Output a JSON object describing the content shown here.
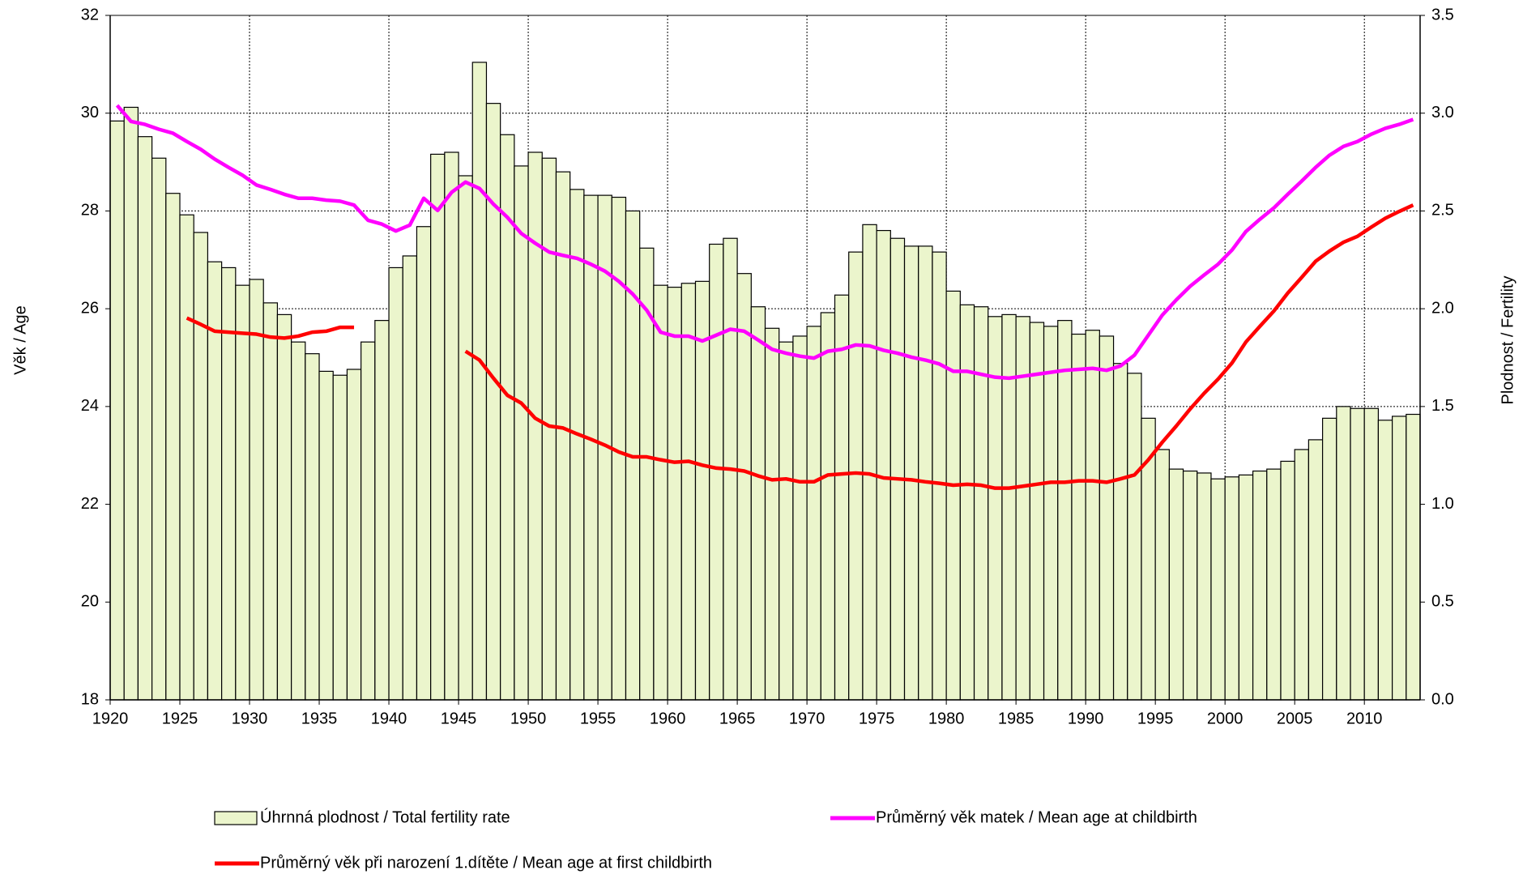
{
  "chart_data": {
    "type": "combo",
    "y_label": "Věk / Age",
    "y2_label": "Plodnost / Fertility",
    "x": [
      1920,
      1921,
      1922,
      1923,
      1924,
      1925,
      1926,
      1927,
      1928,
      1929,
      1930,
      1931,
      1932,
      1933,
      1934,
      1935,
      1936,
      1937,
      1938,
      1939,
      1940,
      1941,
      1942,
      1943,
      1944,
      1945,
      1946,
      1947,
      1948,
      1949,
      1950,
      1951,
      1952,
      1953,
      1954,
      1955,
      1956,
      1957,
      1958,
      1959,
      1960,
      1961,
      1962,
      1963,
      1964,
      1965,
      1966,
      1967,
      1968,
      1969,
      1970,
      1971,
      1972,
      1973,
      1974,
      1975,
      1976,
      1977,
      1978,
      1979,
      1980,
      1981,
      1982,
      1983,
      1984,
      1985,
      1986,
      1987,
      1988,
      1989,
      1990,
      1991,
      1992,
      1993,
      1994,
      1995,
      1996,
      1997,
      1998,
      1999,
      2000,
      2001,
      2002,
      2003,
      2004,
      2005,
      2006,
      2007,
      2008,
      2009,
      2010,
      2011,
      2012,
      2013
    ],
    "xlim": [
      1920,
      2014
    ],
    "xticks": [
      1920,
      1925,
      1930,
      1935,
      1940,
      1945,
      1950,
      1955,
      1960,
      1965,
      1970,
      1975,
      1980,
      1985,
      1990,
      1995,
      2000,
      2005,
      2010
    ],
    "ylim": [
      18,
      32
    ],
    "yticks": [
      18,
      20,
      22,
      24,
      26,
      28,
      30,
      32
    ],
    "y2lim": [
      0,
      3.5
    ],
    "y2ticks": [
      {
        "value": 0,
        "label": "0.0"
      },
      0.5,
      {
        "value": 1,
        "label": "1.0"
      },
      1.5,
      {
        "value": 2,
        "label": "2.0"
      },
      2.5,
      {
        "value": 3,
        "label": "3.0"
      },
      3.5
    ],
    "grid": true,
    "series": [
      {
        "name": "Úhrnná plodnost / Total fertility rate",
        "type": "bar",
        "axis": "y2",
        "color": "#ebf5cc",
        "values": [
          2.96,
          3.03,
          2.88,
          2.77,
          2.59,
          2.48,
          2.39,
          2.24,
          2.21,
          2.12,
          2.15,
          2.03,
          1.97,
          1.83,
          1.77,
          1.68,
          1.66,
          1.69,
          1.83,
          1.94,
          2.21,
          2.27,
          2.42,
          2.79,
          2.8,
          2.68,
          3.26,
          3.05,
          2.89,
          2.73,
          2.8,
          2.77,
          2.7,
          2.61,
          2.58,
          2.58,
          2.57,
          2.5,
          2.31,
          2.12,
          2.11,
          2.13,
          2.14,
          2.33,
          2.36,
          2.18,
          2.01,
          1.9,
          1.83,
          1.86,
          1.91,
          1.98,
          2.07,
          2.29,
          2.43,
          2.4,
          2.36,
          2.32,
          2.32,
          2.29,
          2.09,
          2.02,
          2.01,
          1.96,
          1.97,
          1.96,
          1.93,
          1.91,
          1.94,
          1.87,
          1.89,
          1.86,
          1.72,
          1.67,
          1.44,
          1.28,
          1.18,
          1.17,
          1.16,
          1.13,
          1.14,
          1.15,
          1.17,
          1.18,
          1.22,
          1.28,
          1.33,
          1.44,
          1.5,
          1.49,
          1.49,
          1.43,
          1.45,
          1.46
        ]
      },
      {
        "name": "Průměrný věk matek / Mean age at childbirth",
        "type": "line",
        "color": "#ff00ff",
        "values": [
          30.16,
          29.83,
          29.77,
          29.67,
          29.59,
          29.42,
          29.26,
          29.06,
          28.89,
          28.73,
          28.53,
          28.44,
          28.34,
          28.26,
          28.26,
          28.22,
          28.2,
          28.12,
          27.81,
          27.73,
          27.59,
          27.71,
          28.26,
          28.01,
          28.38,
          28.59,
          28.46,
          28.14,
          27.87,
          27.54,
          27.34,
          27.16,
          27.09,
          27.03,
          26.91,
          26.77,
          26.56,
          26.3,
          25.97,
          25.52,
          25.44,
          25.44,
          25.34,
          25.46,
          25.58,
          25.54,
          25.36,
          25.17,
          25.09,
          25.03,
          24.99,
          25.13,
          25.17,
          25.26,
          25.24,
          25.15,
          25.09,
          25.01,
          24.95,
          24.87,
          24.72,
          24.72,
          24.66,
          24.6,
          24.58,
          24.62,
          24.66,
          24.7,
          24.74,
          24.76,
          24.78,
          24.74,
          24.83,
          25.05,
          25.46,
          25.87,
          26.18,
          26.46,
          26.69,
          26.91,
          27.2,
          27.58,
          27.83,
          28.06,
          28.34,
          28.61,
          28.89,
          29.14,
          29.32,
          29.42,
          29.57,
          29.69,
          29.77,
          29.87
        ]
      },
      {
        "name": "Průměrný věk při narození 1.dítěte / Mean age at first childbirth",
        "type": "line",
        "color": "#ff0000",
        "values": [
          null,
          null,
          null,
          null,
          null,
          25.81,
          25.68,
          25.54,
          25.52,
          25.5,
          25.48,
          25.42,
          25.4,
          25.44,
          25.52,
          25.54,
          25.62,
          25.62,
          null,
          null,
          null,
          null,
          null,
          null,
          null,
          25.13,
          24.95,
          24.58,
          24.23,
          24.07,
          23.76,
          23.6,
          23.56,
          23.44,
          23.33,
          23.21,
          23.07,
          22.97,
          22.97,
          22.91,
          22.86,
          22.88,
          22.8,
          22.74,
          22.72,
          22.68,
          22.58,
          22.5,
          22.52,
          22.46,
          22.46,
          22.6,
          22.62,
          22.64,
          22.62,
          22.54,
          22.52,
          22.5,
          22.46,
          22.43,
          22.39,
          22.41,
          22.39,
          22.33,
          22.33,
          22.37,
          22.41,
          22.45,
          22.45,
          22.48,
          22.48,
          22.45,
          22.52,
          22.6,
          22.91,
          23.27,
          23.6,
          23.95,
          24.27,
          24.56,
          24.89,
          25.32,
          25.64,
          25.95,
          26.32,
          26.64,
          26.97,
          27.18,
          27.36,
          27.48,
          27.67,
          27.85,
          27.99,
          28.12
        ]
      }
    ]
  }
}
